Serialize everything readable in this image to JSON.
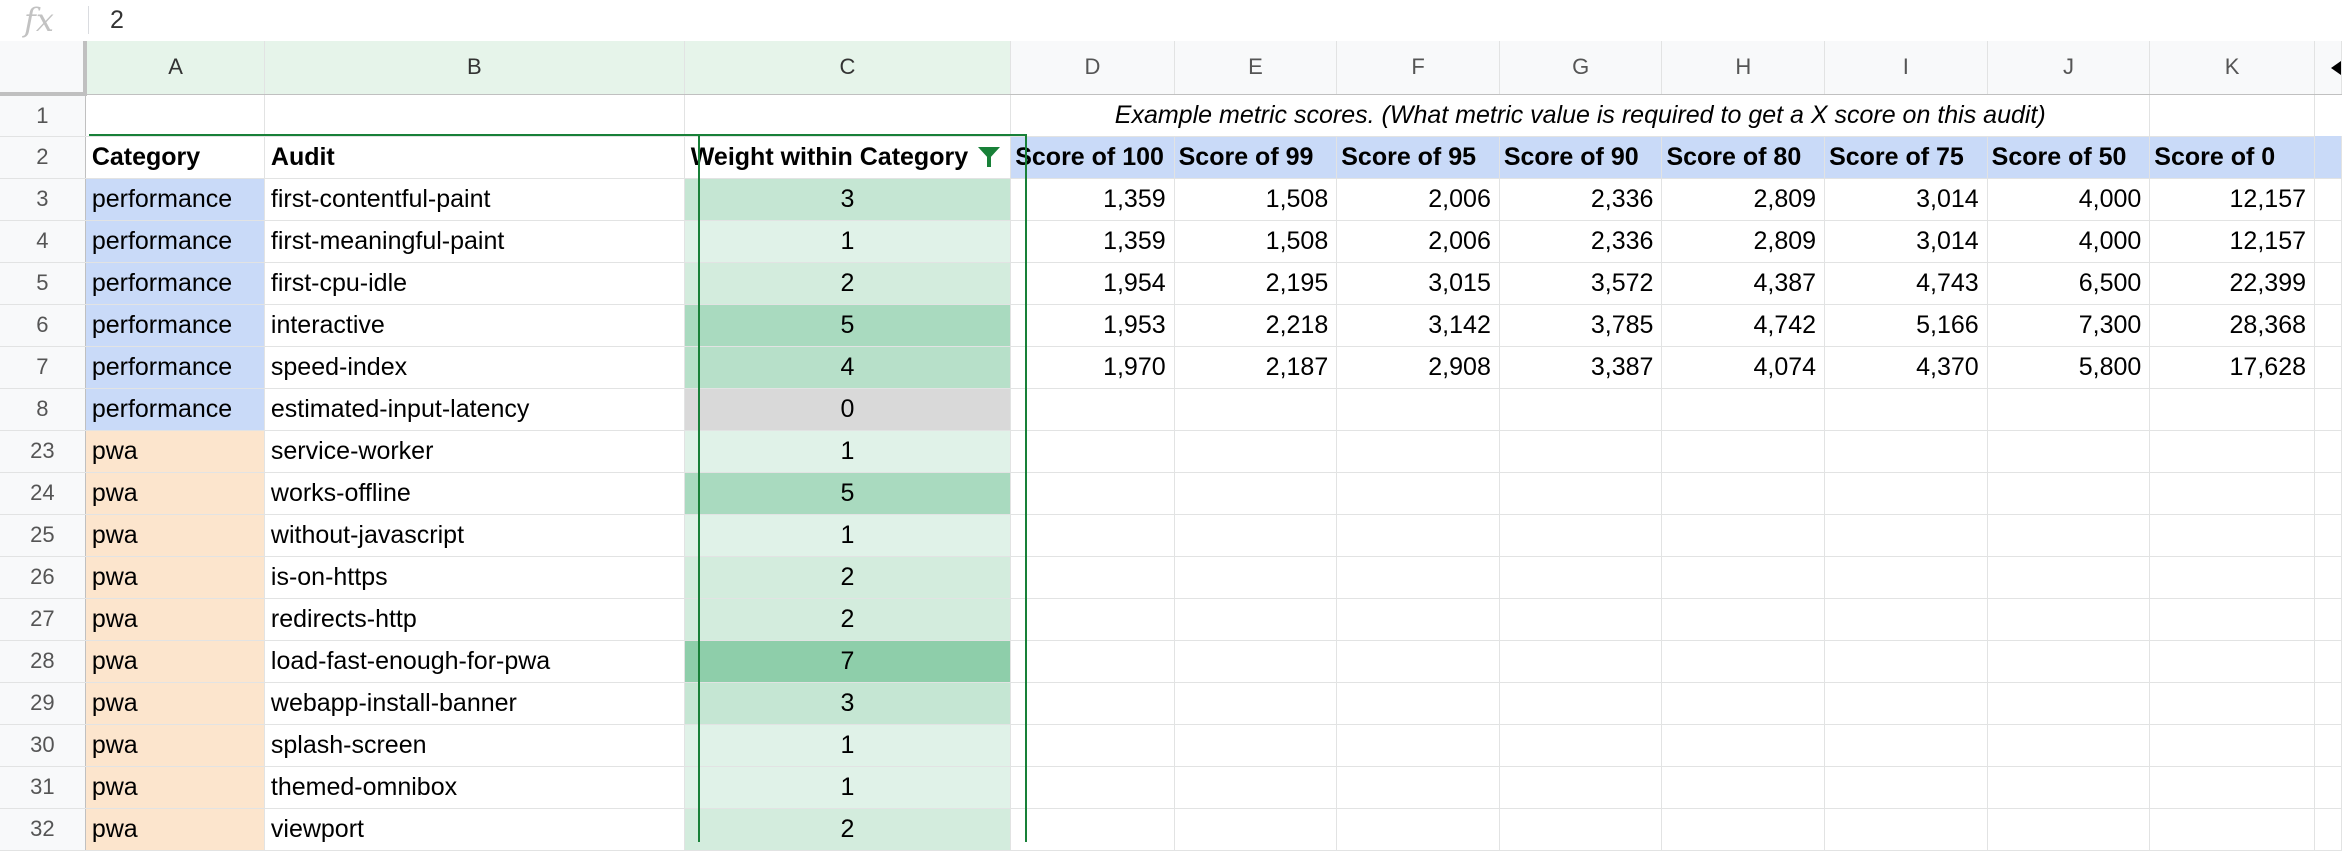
{
  "formula_bar": {
    "fx_label": "fx",
    "value": "2"
  },
  "columns": [
    "A",
    "B",
    "C",
    "D",
    "E",
    "F",
    "G",
    "H",
    "I",
    "J",
    "K"
  ],
  "row1_note": "Example metric scores. (What metric value is required to get a X score on this audit)",
  "headers": {
    "category": "Category",
    "audit": "Audit",
    "weight": "Weight within Category",
    "scores": [
      "Score of 100",
      "Score of 99",
      "Score of 95",
      "Score of 90",
      "Score of 80",
      "Score of 75",
      "Score of 50",
      "Score of 0"
    ]
  },
  "colors": {
    "performance_fill": "#c9daf8",
    "pwa_fill": "#fce5cd",
    "score_header_fill": "#c9daf8",
    "selection_accent": "#188038",
    "weight_zero_fill": "#d9d9d9"
  },
  "rows": [
    {
      "row": "3",
      "category": "performance",
      "audit": "first-contentful-paint",
      "weight": "3",
      "scores": [
        "1,359",
        "1,508",
        "2,006",
        "2,336",
        "2,809",
        "3,014",
        "4,000",
        "12,157"
      ]
    },
    {
      "row": "4",
      "category": "performance",
      "audit": "first-meaningful-paint",
      "weight": "1",
      "scores": [
        "1,359",
        "1,508",
        "2,006",
        "2,336",
        "2,809",
        "3,014",
        "4,000",
        "12,157"
      ]
    },
    {
      "row": "5",
      "category": "performance",
      "audit": "first-cpu-idle",
      "weight": "2",
      "scores": [
        "1,954",
        "2,195",
        "3,015",
        "3,572",
        "4,387",
        "4,743",
        "6,500",
        "22,399"
      ]
    },
    {
      "row": "6",
      "category": "performance",
      "audit": "interactive",
      "weight": "5",
      "scores": [
        "1,953",
        "2,218",
        "3,142",
        "3,785",
        "4,742",
        "5,166",
        "7,300",
        "28,368"
      ]
    },
    {
      "row": "7",
      "category": "performance",
      "audit": "speed-index",
      "weight": "4",
      "scores": [
        "1,970",
        "2,187",
        "2,908",
        "3,387",
        "4,074",
        "4,370",
        "5,800",
        "17,628"
      ]
    },
    {
      "row": "8",
      "category": "performance",
      "audit": "estimated-input-latency",
      "weight": "0",
      "scores": [
        "",
        "",
        "",
        "",
        "",
        "",
        "",
        ""
      ]
    },
    {
      "row": "23",
      "category": "pwa",
      "audit": "service-worker",
      "weight": "1",
      "scores": [
        "",
        "",
        "",
        "",
        "",
        "",
        "",
        ""
      ]
    },
    {
      "row": "24",
      "category": "pwa",
      "audit": "works-offline",
      "weight": "5",
      "scores": [
        "",
        "",
        "",
        "",
        "",
        "",
        "",
        ""
      ]
    },
    {
      "row": "25",
      "category": "pwa",
      "audit": "without-javascript",
      "weight": "1",
      "scores": [
        "",
        "",
        "",
        "",
        "",
        "",
        "",
        ""
      ]
    },
    {
      "row": "26",
      "category": "pwa",
      "audit": "is-on-https",
      "weight": "2",
      "scores": [
        "",
        "",
        "",
        "",
        "",
        "",
        "",
        ""
      ]
    },
    {
      "row": "27",
      "category": "pwa",
      "audit": "redirects-http",
      "weight": "2",
      "scores": [
        "",
        "",
        "",
        "",
        "",
        "",
        "",
        ""
      ]
    },
    {
      "row": "28",
      "category": "pwa",
      "audit": "load-fast-enough-for-pwa",
      "weight": "7",
      "scores": [
        "",
        "",
        "",
        "",
        "",
        "",
        "",
        ""
      ]
    },
    {
      "row": "29",
      "category": "pwa",
      "audit": "webapp-install-banner",
      "weight": "3",
      "scores": [
        "",
        "",
        "",
        "",
        "",
        "",
        "",
        ""
      ]
    },
    {
      "row": "30",
      "category": "pwa",
      "audit": "splash-screen",
      "weight": "1",
      "scores": [
        "",
        "",
        "",
        "",
        "",
        "",
        "",
        ""
      ]
    },
    {
      "row": "31",
      "category": "pwa",
      "audit": "themed-omnibox",
      "weight": "1",
      "scores": [
        "",
        "",
        "",
        "",
        "",
        "",
        "",
        ""
      ]
    },
    {
      "row": "32",
      "category": "pwa",
      "audit": "viewport",
      "weight": "2",
      "scores": [
        "",
        "",
        "",
        "",
        "",
        "",
        "",
        ""
      ]
    }
  ]
}
